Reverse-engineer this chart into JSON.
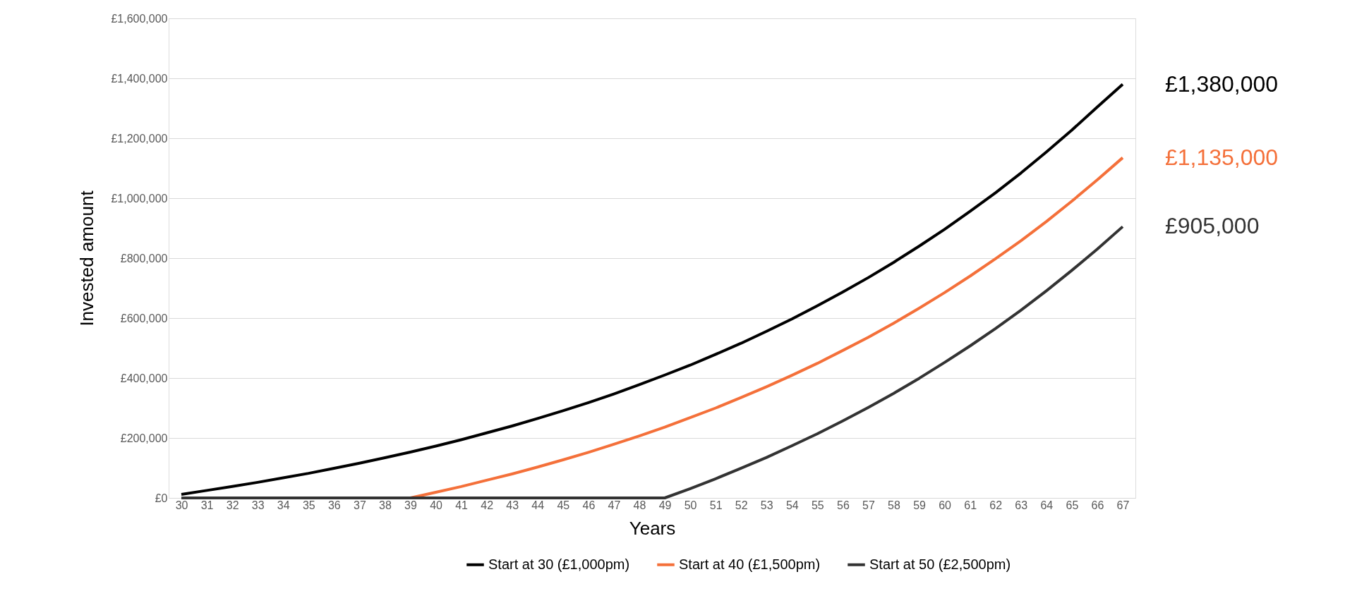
{
  "chart_data": {
    "type": "line",
    "xlabel": "Years",
    "ylabel": "Invested amount",
    "categories": [
      "30",
      "31",
      "32",
      "33",
      "34",
      "35",
      "36",
      "37",
      "38",
      "39",
      "40",
      "41",
      "42",
      "43",
      "44",
      "45",
      "46",
      "47",
      "48",
      "49",
      "50",
      "51",
      "52",
      "53",
      "54",
      "55",
      "56",
      "57",
      "58",
      "59",
      "60",
      "61",
      "62",
      "63",
      "64",
      "65",
      "66",
      "67"
    ],
    "series": [
      {
        "name": "Start at 30 (£1,000pm)",
        "color": "#000000",
        "values": [
          12000,
          25000,
          38000,
          52000,
          67000,
          82000,
          99000,
          116000,
          134000,
          153000,
          173000,
          194000,
          217000,
          240000,
          265000,
          291000,
          318000,
          347000,
          378000,
          410000,
          443000,
          479000,
          516000,
          556000,
          597000,
          641000,
          687000,
          735000,
          786000,
          840000,
          896000,
          956000,
          1018000,
          1084000,
          1154000,
          1227000,
          1304000,
          1380000
        ],
        "value_labels": [
          null,
          null,
          null,
          null,
          null,
          null,
          null,
          null,
          null,
          null,
          null,
          null,
          null,
          null,
          null,
          null,
          null,
          null,
          null,
          null,
          null,
          null,
          null,
          null,
          null,
          null,
          null,
          null,
          null,
          null,
          null,
          null,
          null,
          null,
          null,
          null,
          null,
          "£1,380,000"
        ]
      },
      {
        "name": "Start at 40 (£1,500pm)",
        "color": "#f4703a",
        "values": [
          null,
          null,
          null,
          null,
          null,
          null,
          null,
          null,
          null,
          0,
          19000,
          38000,
          59000,
          80000,
          103000,
          127000,
          152000,
          179000,
          207000,
          236000,
          268000,
          300000,
          335000,
          371000,
          409000,
          449000,
          492000,
          536000,
          583000,
          633000,
          685000,
          740000,
          798000,
          858000,
          922000,
          990000,
          1061000,
          1135000
        ],
        "value_labels": [
          null,
          null,
          null,
          null,
          null,
          null,
          null,
          null,
          null,
          null,
          null,
          null,
          null,
          null,
          null,
          null,
          null,
          null,
          null,
          null,
          null,
          null,
          null,
          null,
          null,
          null,
          null,
          null,
          null,
          null,
          null,
          null,
          null,
          null,
          null,
          null,
          null,
          "£1,135,000"
        ]
      },
      {
        "name": "Start at 50 (£2,500pm)",
        "color": "#333333",
        "values": [
          0,
          0,
          0,
          0,
          0,
          0,
          0,
          0,
          0,
          0,
          0,
          0,
          0,
          0,
          0,
          0,
          0,
          0,
          0,
          0,
          31000,
          64000,
          99000,
          135000,
          174000,
          214000,
          257000,
          302000,
          349000,
          399000,
          452000,
          507000,
          565000,
          626000,
          691000,
          759000,
          830000,
          905000
        ],
        "value_labels": [
          null,
          null,
          null,
          null,
          null,
          null,
          null,
          null,
          null,
          null,
          null,
          null,
          null,
          null,
          null,
          null,
          null,
          null,
          null,
          null,
          null,
          null,
          null,
          null,
          null,
          null,
          null,
          null,
          null,
          null,
          null,
          null,
          null,
          null,
          null,
          null,
          null,
          "£905,000"
        ]
      }
    ],
    "ylim": [
      0,
      1600000
    ],
    "yticks": [
      {
        "value": 0,
        "label": "£0"
      },
      {
        "value": 200000,
        "label": "£200,000"
      },
      {
        "value": 400000,
        "label": "£400,000"
      },
      {
        "value": 600000,
        "label": "£600,000"
      },
      {
        "value": 800000,
        "label": "£800,000"
      },
      {
        "value": 1000000,
        "label": "£1,000,000"
      },
      {
        "value": 1200000,
        "label": "£1,200,000"
      },
      {
        "value": 1400000,
        "label": "£1,400,000"
      },
      {
        "value": 1600000,
        "label": "£1,600,000"
      }
    ],
    "grid": "y",
    "legend": "bottom",
    "marker": "none",
    "line_style": "solid"
  }
}
